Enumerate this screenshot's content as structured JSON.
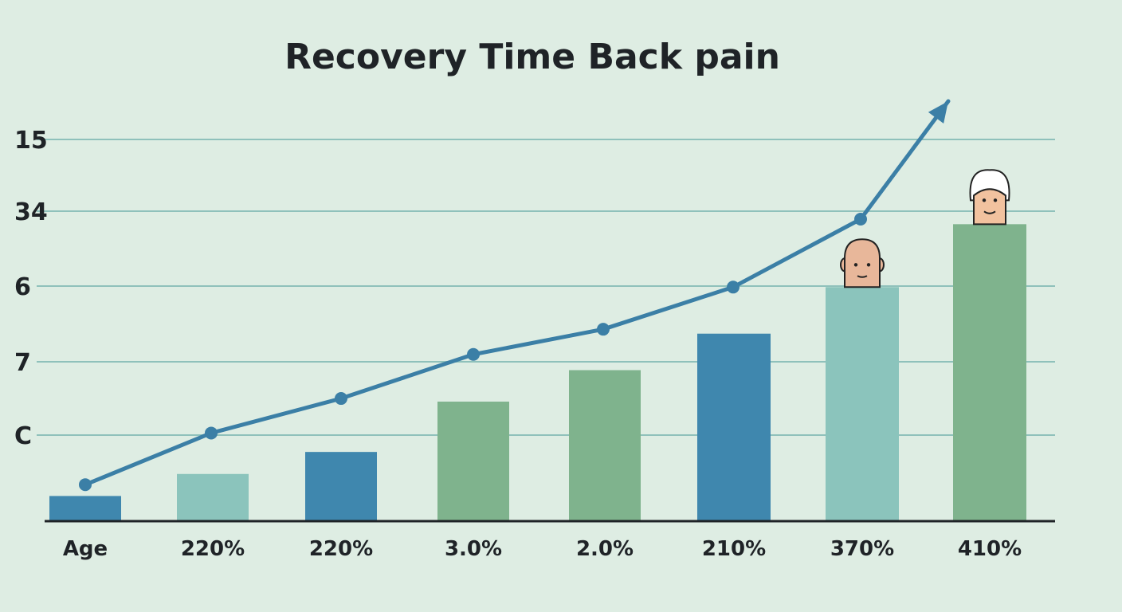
{
  "chart_data": {
    "type": "bar",
    "title": "Recovery Time Back pain",
    "xlabel": "",
    "ylabel": "",
    "categories": [
      "Age",
      "220%",
      "220%",
      "3.0%",
      "2.0%",
      "210%",
      "370%",
      "410%"
    ],
    "y_tick_labels": [
      "15",
      "34",
      "6",
      "7",
      "C"
    ],
    "ylim": [
      0,
      5.75
    ],
    "grid": true,
    "legend": "none",
    "series": [
      {
        "type": "bar",
        "values": [
          0.4,
          0.75,
          1.1,
          1.9,
          2.4,
          2.98,
          3.72,
          4.72
        ],
        "colors": [
          "#3f87ae",
          "#8bc4bc",
          "#3f87ae",
          "#7fb38d",
          "#7fb38d",
          "#3f87ae",
          "#8bc4bc",
          "#7fb38d"
        ]
      },
      {
        "type": "line",
        "values": [
          0.58,
          1.4,
          1.95,
          2.65,
          3.05,
          3.72,
          4.8,
          5.68
        ],
        "color": "#3b7fa6",
        "end_arrow": true
      }
    ],
    "icons": [
      {
        "category_index": 6,
        "name": "bald-head-icon"
      },
      {
        "category_index": 7,
        "name": "elderly-person-icon"
      }
    ]
  }
}
